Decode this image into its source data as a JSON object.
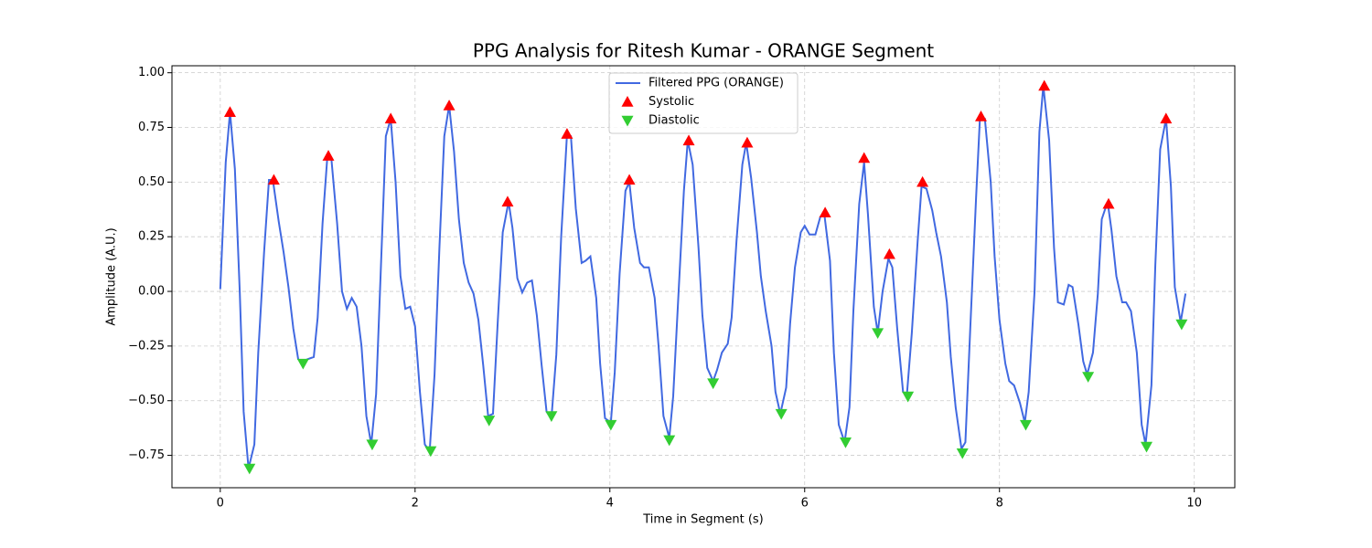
{
  "chart_data": {
    "type": "line",
    "title": "PPG Analysis for Ritesh Kumar - ORANGE Segment",
    "xlabel": "Time in Segment (s)",
    "ylabel": "Amplitude (A.U.)",
    "xlim": [
      -0.496,
      10.416
    ],
    "ylim": [
      -0.898,
      1.032
    ],
    "xticks": [
      0,
      2,
      4,
      6,
      8,
      10
    ],
    "yticks": [
      {
        "value": -0.75,
        "label": "−0.75"
      },
      {
        "value": -0.5,
        "label": "−0.50"
      },
      {
        "value": -0.25,
        "label": "−0.25"
      },
      {
        "value": 0,
        "label": "0.00"
      },
      0.25,
      {
        "value": 0.5,
        "label": "0.50"
      },
      0.75,
      {
        "value": 1,
        "label": "1.00"
      }
    ],
    "grid": true,
    "legend": "upper center",
    "series": [
      {
        "name": "Filtered PPG (ORANGE)",
        "color": "#4169e1",
        "marker": "none",
        "x": [
          0,
          0.056,
          0.1,
          0.15,
          0.2,
          0.24,
          0.29,
          0.35,
          0.39,
          0.45,
          0.5,
          0.54,
          0.6,
          0.65,
          0.7,
          0.75,
          0.8,
          0.84,
          0.9,
          0.96,
          1.0,
          1.05,
          1.1,
          1.14,
          1.2,
          1.25,
          1.3,
          1.35,
          1.4,
          1.45,
          1.5,
          1.55,
          1.6,
          1.65,
          1.7,
          1.75,
          1.8,
          1.85,
          1.9,
          1.95,
          2.0,
          2.05,
          2.1,
          2.15,
          2.2,
          2.25,
          2.3,
          2.35,
          2.4,
          2.45,
          2.5,
          2.55,
          2.6,
          2.65,
          2.7,
          2.75,
          2.8,
          2.85,
          2.9,
          2.96,
          3.0,
          3.05,
          3.1,
          3.15,
          3.2,
          3.25,
          3.3,
          3.35,
          3.4,
          3.45,
          3.5,
          3.56,
          3.6,
          3.65,
          3.71,
          3.75,
          3.8,
          3.86,
          3.9,
          3.95,
          4.01,
          4.05,
          4.1,
          4.16,
          4.2,
          4.25,
          4.31,
          4.35,
          4.4,
          4.46,
          4.5,
          4.55,
          4.61,
          4.65,
          4.7,
          4.76,
          4.8,
          4.85,
          4.91,
          4.95,
          5.0,
          5.06,
          5.1,
          5.15,
          5.21,
          5.25,
          5.3,
          5.36,
          5.4,
          5.45,
          5.51,
          5.55,
          5.6,
          5.66,
          5.7,
          5.75,
          5.81,
          5.85,
          5.9,
          5.96,
          6.0,
          6.05,
          6.11,
          6.16,
          6.2,
          6.26,
          6.3,
          6.35,
          6.41,
          6.46,
          6.5,
          6.56,
          6.61,
          6.65,
          6.71,
          6.75,
          6.8,
          6.86,
          6.9,
          6.95,
          7.01,
          7.05,
          7.1,
          7.16,
          7.2,
          7.25,
          7.31,
          7.35,
          7.4,
          7.46,
          7.5,
          7.55,
          7.61,
          7.65,
          7.7,
          7.76,
          7.8,
          7.85,
          7.91,
          7.95,
          8.0,
          8.06,
          8.1,
          8.15,
          8.21,
          8.26,
          8.3,
          8.36,
          8.41,
          8.45,
          8.51,
          8.56,
          8.6,
          8.66,
          8.71,
          8.75,
          8.81,
          8.86,
          8.9,
          8.96,
          9.01,
          9.05,
          9.11,
          9.15,
          9.2,
          9.26,
          9.3,
          9.35,
          9.41,
          9.46,
          9.5,
          9.56,
          9.6,
          9.65,
          9.71,
          9.76,
          9.8,
          9.86,
          9.91
        ],
        "values": [
          0.01,
          0.59,
          0.82,
          0.56,
          0.0,
          -0.55,
          -0.81,
          -0.7,
          -0.28,
          0.18,
          0.51,
          0.51,
          0.32,
          0.18,
          0.02,
          -0.17,
          -0.31,
          -0.32,
          -0.31,
          -0.3,
          -0.12,
          0.31,
          0.62,
          0.61,
          0.31,
          0.0,
          -0.08,
          -0.03,
          -0.07,
          -0.25,
          -0.57,
          -0.7,
          -0.47,
          0.12,
          0.71,
          0.79,
          0.5,
          0.07,
          -0.08,
          -0.07,
          -0.16,
          -0.46,
          -0.7,
          -0.73,
          -0.38,
          0.2,
          0.71,
          0.85,
          0.64,
          0.33,
          0.13,
          0.04,
          -0.01,
          -0.13,
          -0.34,
          -0.57,
          -0.56,
          -0.13,
          0.27,
          0.41,
          0.29,
          0.06,
          -0.005,
          0.04,
          0.05,
          -0.11,
          -0.34,
          -0.55,
          -0.58,
          -0.29,
          0.25,
          0.72,
          0.71,
          0.38,
          0.13,
          0.14,
          0.16,
          -0.03,
          -0.33,
          -0.58,
          -0.6,
          -0.37,
          0.08,
          0.46,
          0.5,
          0.29,
          0.13,
          0.11,
          0.11,
          -0.03,
          -0.25,
          -0.57,
          -0.67,
          -0.48,
          -0.05,
          0.46,
          0.69,
          0.58,
          0.2,
          -0.11,
          -0.35,
          -0.41,
          -0.36,
          -0.28,
          -0.24,
          -0.12,
          0.23,
          0.58,
          0.68,
          0.52,
          0.27,
          0.07,
          -0.09,
          -0.25,
          -0.46,
          -0.56,
          -0.44,
          -0.15,
          0.11,
          0.27,
          0.3,
          0.26,
          0.26,
          0.34,
          0.36,
          0.14,
          -0.28,
          -0.61,
          -0.69,
          -0.53,
          -0.09,
          0.4,
          0.59,
          0.35,
          -0.07,
          -0.19,
          0.0,
          0.15,
          0.11,
          -0.17,
          -0.46,
          -0.47,
          -0.19,
          0.23,
          0.48,
          0.47,
          0.37,
          0.27,
          0.16,
          -0.05,
          -0.3,
          -0.53,
          -0.72,
          -0.69,
          -0.17,
          0.43,
          0.8,
          0.79,
          0.5,
          0.16,
          -0.13,
          -0.33,
          -0.41,
          -0.43,
          -0.51,
          -0.6,
          -0.46,
          0.0,
          0.73,
          0.94,
          0.69,
          0.2,
          -0.05,
          -0.06,
          0.03,
          0.02,
          -0.15,
          -0.32,
          -0.38,
          -0.28,
          -0.01,
          0.33,
          0.41,
          0.28,
          0.07,
          -0.05,
          -0.05,
          -0.09,
          -0.28,
          -0.61,
          -0.7,
          -0.43,
          0.12,
          0.65,
          0.79,
          0.48,
          0.02,
          -0.14,
          -0.01
        ]
      },
      {
        "name": "Systolic",
        "color": "#ff0000",
        "marker": "^",
        "x": [
          0.1,
          0.55,
          1.11,
          1.75,
          2.35,
          2.95,
          3.56,
          4.2,
          4.81,
          5.41,
          6.21,
          6.61,
          6.87,
          7.21,
          7.81,
          8.46,
          9.12,
          9.71
        ],
        "values": [
          0.82,
          0.51,
          0.62,
          0.79,
          0.85,
          0.41,
          0.72,
          0.51,
          0.69,
          0.68,
          0.36,
          0.61,
          0.17,
          0.5,
          0.8,
          0.94,
          0.4,
          0.79
        ]
      },
      {
        "name": "Diastolic",
        "color": "#32cd32",
        "marker": "v",
        "x": [
          0.3,
          0.85,
          1.56,
          2.16,
          2.76,
          3.4,
          4.01,
          4.61,
          5.06,
          5.76,
          6.42,
          6.75,
          7.06,
          7.62,
          8.27,
          8.91,
          9.51,
          9.87
        ],
        "values": [
          -0.81,
          -0.33,
          -0.7,
          -0.73,
          -0.59,
          -0.57,
          -0.61,
          -0.68,
          -0.42,
          -0.56,
          -0.69,
          -0.19,
          -0.48,
          -0.74,
          -0.61,
          -0.39,
          -0.71,
          -0.15
        ]
      }
    ]
  }
}
